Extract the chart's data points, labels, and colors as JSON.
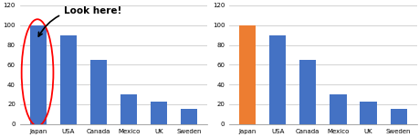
{
  "categories": [
    "Japan",
    "USA",
    "Canada",
    "Mexico",
    "UK",
    "Sweden"
  ],
  "values": [
    100,
    90,
    65,
    30,
    23,
    15
  ],
  "bar_color_default": "#4472c4",
  "bar_color_highlight": "#ed7d31",
  "highlight_index": 0,
  "ylim": [
    0,
    120
  ],
  "yticks": [
    0,
    20,
    40,
    60,
    80,
    100,
    120
  ],
  "background_color": "#ffffff",
  "annotation_text": "Look here!",
  "annotation_fontsize": 7.5,
  "tick_fontsize": 5.0,
  "ellipse_color": "red",
  "arrow_color": "black",
  "bar_width": 0.55,
  "grid_color": "#c0c0c0",
  "spine_color": "#808080"
}
